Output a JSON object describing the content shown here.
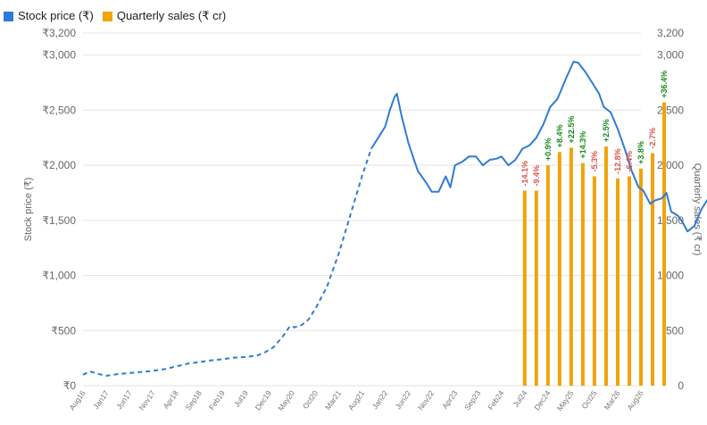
{
  "chart_data": {
    "type": "line+bar",
    "legend": {
      "position": "top-left",
      "items": [
        {
          "label": "Stock price (₹)",
          "color": "#2f7bd6"
        },
        {
          "label": "Quarterly sales (₹ cr)",
          "color": "#f0a30a"
        }
      ]
    },
    "left_axis": {
      "title": "Stock price (₹)",
      "ylim": [
        0,
        3200
      ],
      "ticks": [
        {
          "value": 0,
          "label": "₹0"
        },
        {
          "value": 500,
          "label": "₹500"
        },
        {
          "value": 1000,
          "label": "₹1,000"
        },
        {
          "value": 1500,
          "label": "₹1,500"
        },
        {
          "value": 2000,
          "label": "₹2,000"
        },
        {
          "value": 2500,
          "label": "₹2,500"
        },
        {
          "value": 3000,
          "label": "₹3,000"
        },
        {
          "value": 3200,
          "label": "₹3,200"
        }
      ]
    },
    "right_axis": {
      "title": "Quarterly sales (₹ cr)",
      "ylim": [
        0,
        3200
      ],
      "ticks": [
        {
          "value": 0,
          "label": "0"
        },
        {
          "value": 500,
          "label": "500"
        },
        {
          "value": 1000,
          "label": "1,000"
        },
        {
          "value": 1500,
          "label": "1,500"
        },
        {
          "value": 2000,
          "label": "2,000"
        },
        {
          "value": 2500,
          "label": "2,500"
        },
        {
          "value": 3000,
          "label": "3,000"
        },
        {
          "value": 3200,
          "label": "3,200"
        }
      ]
    },
    "grid": true,
    "x_ticks": [
      "Aug16",
      "Jan17",
      "Jun17",
      "Nov17",
      "Apr18",
      "Sep18",
      "Feb19",
      "Jul19",
      "Dec19",
      "May20",
      "Oct20",
      "Mar21",
      "Aug21",
      "Jan22",
      "Jun22",
      "Nov22",
      "Apr23",
      "Sep23",
      "Feb24",
      "Jul24",
      "Dec24",
      "May25",
      "Oct25",
      "Mar26",
      "Aug26"
    ],
    "stock_price": {
      "dashed_points": [
        [
          0,
          100
        ],
        [
          0.3,
          130
        ],
        [
          0.6,
          110
        ],
        [
          1.0,
          90
        ],
        [
          1.5,
          105
        ],
        [
          2.0,
          115
        ],
        [
          2.5,
          125
        ],
        [
          3.0,
          135
        ],
        [
          3.5,
          150
        ],
        [
          4.0,
          175
        ],
        [
          4.5,
          200
        ],
        [
          5.0,
          215
        ],
        [
          5.5,
          230
        ],
        [
          6.0,
          240
        ],
        [
          6.5,
          255
        ],
        [
          7.0,
          260
        ],
        [
          7.5,
          275
        ],
        [
          7.8,
          300
        ],
        [
          8.2,
          350
        ],
        [
          8.6,
          450
        ],
        [
          8.9,
          540
        ],
        [
          9.1,
          530
        ],
        [
          9.4,
          550
        ],
        [
          9.7,
          600
        ],
        [
          10.0,
          700
        ],
        [
          10.5,
          900
        ],
        [
          11.0,
          1200
        ],
        [
          11.5,
          1550
        ],
        [
          12.0,
          1900
        ],
        [
          12.4,
          2150
        ]
      ],
      "solid_points": [
        [
          12.4,
          2150
        ],
        [
          12.7,
          2250
        ],
        [
          13.0,
          2350
        ],
        [
          13.2,
          2500
        ],
        [
          13.4,
          2620
        ],
        [
          13.5,
          2650
        ],
        [
          13.7,
          2450
        ],
        [
          14.0,
          2200
        ],
        [
          14.4,
          1950
        ],
        [
          14.8,
          1830
        ],
        [
          15.0,
          1760
        ],
        [
          15.3,
          1760
        ],
        [
          15.6,
          1900
        ],
        [
          15.8,
          1800
        ],
        [
          16.0,
          2000
        ],
        [
          16.3,
          2030
        ],
        [
          16.6,
          2080
        ],
        [
          16.9,
          2080
        ],
        [
          17.2,
          2000
        ],
        [
          17.5,
          2050
        ],
        [
          17.8,
          2060
        ],
        [
          18.0,
          2080
        ],
        [
          18.3,
          2000
        ],
        [
          18.6,
          2050
        ],
        [
          18.9,
          2150
        ],
        [
          19.2,
          2180
        ],
        [
          19.5,
          2250
        ],
        [
          19.8,
          2370
        ],
        [
          20.1,
          2530
        ],
        [
          20.4,
          2600
        ],
        [
          20.8,
          2800
        ],
        [
          21.1,
          2940
        ],
        [
          21.3,
          2930
        ],
        [
          21.6,
          2850
        ],
        [
          21.9,
          2750
        ],
        [
          22.2,
          2650
        ],
        [
          22.4,
          2530
        ],
        [
          22.7,
          2480
        ],
        [
          23.0,
          2330
        ],
        [
          23.3,
          2150
        ],
        [
          23.6,
          1950
        ],
        [
          23.9,
          1800
        ],
        [
          24.1,
          1770
        ],
        [
          24.4,
          1650
        ],
        [
          24.6,
          1680
        ],
        [
          24.9,
          1700
        ],
        [
          25.1,
          1750
        ],
        [
          25.3,
          1580
        ],
        [
          25.6,
          1540
        ],
        [
          25.8,
          1480
        ],
        [
          26.0,
          1400
        ],
        [
          26.3,
          1450
        ],
        [
          26.6,
          1600
        ],
        [
          26.9,
          1700
        ],
        [
          27.0,
          1710
        ]
      ]
    },
    "quarterly_sales": [
      {
        "x": 19.0,
        "value": 1770,
        "growth": "-14.1%",
        "positive": false
      },
      {
        "x": 19.5,
        "value": 1770,
        "growth": "-9.4%",
        "positive": false
      },
      {
        "x": 20.0,
        "value": 2000,
        "growth": "+0.9%",
        "positive": true
      },
      {
        "x": 20.5,
        "value": 2120,
        "growth": "+8.4%",
        "positive": true
      },
      {
        "x": 21.0,
        "value": 2160,
        "growth": "+22.5%",
        "positive": true
      },
      {
        "x": 21.5,
        "value": 2020,
        "growth": "+14.3%",
        "positive": true
      },
      {
        "x": 22.0,
        "value": 1900,
        "growth": "-5.3%",
        "positive": false
      },
      {
        "x": 22.5,
        "value": 2170,
        "growth": "+2.5%",
        "positive": true
      },
      {
        "x": 23.0,
        "value": 1880,
        "growth": "-12.8%",
        "positive": false
      },
      {
        "x": 23.5,
        "value": 1900,
        "growth": "-6.4%",
        "positive": false
      },
      {
        "x": 24.0,
        "value": 1970,
        "growth": "+3.8%",
        "positive": true
      },
      {
        "x": 24.5,
        "value": 2110,
        "growth": "-2.7%",
        "positive": false
      },
      {
        "x": 25.0,
        "value": 2570,
        "growth": "+36.4%",
        "positive": true
      }
    ],
    "growth_colors": {
      "positive": "#1a8a1a",
      "negative": "#d9534f"
    }
  }
}
